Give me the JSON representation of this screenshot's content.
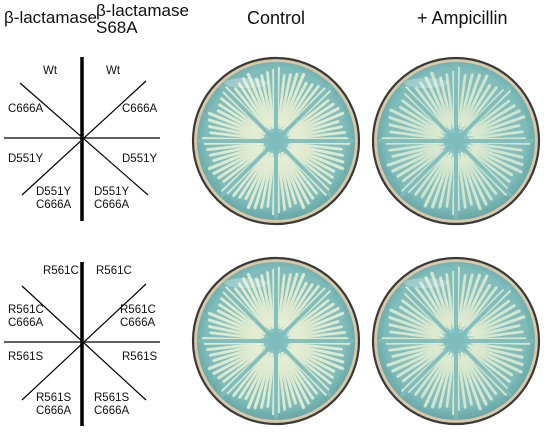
{
  "headers": {
    "col1": "β-lactamase",
    "col2_line1": "β-lactamase",
    "col2_line2": "S68A",
    "control": "Control",
    "ampicillin": "+ Ampicillin"
  },
  "diagram_top": {
    "left_labels": [
      "Wt",
      "C666A",
      "D551Y",
      "D551Y C666A"
    ],
    "right_labels": [
      "Wt",
      "C666A",
      "D551Y",
      "D551Y C666A"
    ]
  },
  "diagram_bottom": {
    "left_labels": [
      "R561C",
      "R561C C666A",
      "R561S",
      "R561S C666A"
    ],
    "right_labels": [
      "R561C",
      "R561C C666A",
      "R561S",
      "R561S C666A"
    ]
  },
  "plates": [
    {
      "row": "top",
      "condition": "Control",
      "streak_density": 1.0
    },
    {
      "row": "top",
      "condition": "+ Ampicillin",
      "streak_density": 0.85
    },
    {
      "row": "bottom",
      "condition": "Control",
      "streak_density": 1.0
    },
    {
      "row": "bottom",
      "condition": "+ Ampicillin",
      "streak_density": 0.9
    }
  ],
  "colors": {
    "agar": "#7fbcbc",
    "agar_edge": "#5f9f9f",
    "colony": "#e7efd2",
    "rim": "#3a3a3a",
    "ink": "#111111"
  }
}
